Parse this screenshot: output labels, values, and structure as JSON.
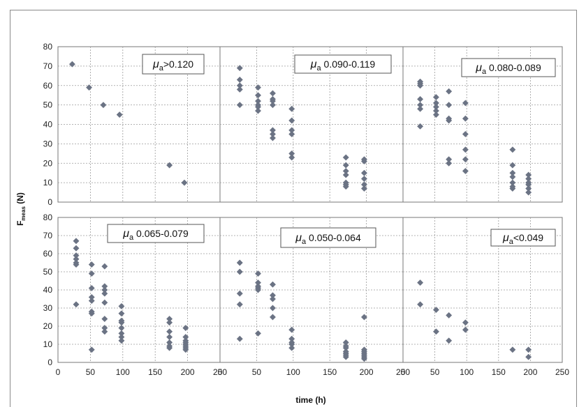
{
  "chart_data": {
    "type": "scatter",
    "xlabel": "time (h)",
    "ylabel_main": "F",
    "ylabel_sub": "meas",
    "ylabel_unit": " (N)",
    "xlim": [
      0,
      250
    ],
    "ylim": [
      0,
      80
    ],
    "x_ticks": [
      0,
      50,
      100,
      150,
      200,
      250
    ],
    "y_ticks": [
      0,
      10,
      20,
      30,
      40,
      50,
      60,
      70,
      80
    ],
    "grid": true,
    "marker_color": "#6b7384",
    "panels": [
      {
        "label_symbol": "μ",
        "label_sub": "a",
        "label_rest": ">0.120",
        "points": [
          [
            22,
            71
          ],
          [
            48,
            59
          ],
          [
            70,
            50
          ],
          [
            95,
            45
          ],
          [
            172,
            19
          ],
          [
            195,
            10
          ]
        ]
      },
      {
        "label_symbol": "μ",
        "label_sub": "a",
        "label_rest": " 0.090-0.119",
        "points": [
          [
            27,
            69
          ],
          [
            27,
            63
          ],
          [
            27,
            60
          ],
          [
            27,
            58
          ],
          [
            27,
            50
          ],
          [
            52,
            59
          ],
          [
            52,
            55
          ],
          [
            52,
            52
          ],
          [
            52,
            50
          ],
          [
            52,
            49
          ],
          [
            52,
            47
          ],
          [
            72,
            56
          ],
          [
            72,
            53
          ],
          [
            72,
            52
          ],
          [
            72,
            50
          ],
          [
            72,
            37
          ],
          [
            72,
            35
          ],
          [
            72,
            33
          ],
          [
            98,
            48
          ],
          [
            98,
            42
          ],
          [
            98,
            37
          ],
          [
            98,
            35
          ],
          [
            98,
            25
          ],
          [
            98,
            23
          ],
          [
            172,
            23
          ],
          [
            172,
            19
          ],
          [
            172,
            16
          ],
          [
            172,
            14
          ],
          [
            172,
            10
          ],
          [
            172,
            9
          ],
          [
            172,
            8
          ],
          [
            197,
            22
          ],
          [
            197,
            21
          ],
          [
            197,
            15
          ],
          [
            197,
            12
          ],
          [
            197,
            9
          ],
          [
            197,
            7
          ]
        ]
      },
      {
        "label_symbol": "μ",
        "label_sub": "a",
        "label_rest": " 0.080-0.089",
        "points": [
          [
            27,
            62
          ],
          [
            27,
            61
          ],
          [
            27,
            60
          ],
          [
            27,
            53
          ],
          [
            27,
            50
          ],
          [
            27,
            48
          ],
          [
            27,
            39
          ],
          [
            52,
            54
          ],
          [
            52,
            51
          ],
          [
            52,
            49
          ],
          [
            52,
            47
          ],
          [
            52,
            45
          ],
          [
            72,
            57
          ],
          [
            72,
            50
          ],
          [
            72,
            43
          ],
          [
            72,
            42
          ],
          [
            72,
            22
          ],
          [
            72,
            20
          ],
          [
            98,
            51
          ],
          [
            98,
            43
          ],
          [
            98,
            35
          ],
          [
            98,
            27
          ],
          [
            98,
            22
          ],
          [
            98,
            16
          ],
          [
            172,
            27
          ],
          [
            172,
            19
          ],
          [
            172,
            15
          ],
          [
            172,
            13
          ],
          [
            172,
            10
          ],
          [
            172,
            8
          ],
          [
            172,
            7
          ],
          [
            197,
            14
          ],
          [
            197,
            12
          ],
          [
            197,
            10
          ],
          [
            197,
            9
          ],
          [
            197,
            7
          ],
          [
            197,
            5
          ]
        ]
      },
      {
        "label_symbol": "μ",
        "label_sub": "a",
        "label_rest": " 0.065-0.079",
        "points": [
          [
            28,
            67
          ],
          [
            28,
            63
          ],
          [
            28,
            59
          ],
          [
            28,
            57
          ],
          [
            28,
            55
          ],
          [
            28,
            54
          ],
          [
            28,
            32
          ],
          [
            52,
            54
          ],
          [
            52,
            49
          ],
          [
            52,
            41
          ],
          [
            52,
            36
          ],
          [
            52,
            34
          ],
          [
            52,
            28
          ],
          [
            52,
            27
          ],
          [
            52,
            7
          ],
          [
            72,
            53
          ],
          [
            72,
            42
          ],
          [
            72,
            40
          ],
          [
            72,
            38
          ],
          [
            72,
            33
          ],
          [
            72,
            24
          ],
          [
            72,
            19
          ],
          [
            72,
            17
          ],
          [
            98,
            31
          ],
          [
            98,
            27
          ],
          [
            98,
            23
          ],
          [
            98,
            22
          ],
          [
            98,
            19
          ],
          [
            98,
            16
          ],
          [
            98,
            14
          ],
          [
            98,
            12
          ],
          [
            172,
            24
          ],
          [
            172,
            22
          ],
          [
            172,
            17
          ],
          [
            172,
            14
          ],
          [
            172,
            11
          ],
          [
            172,
            9
          ],
          [
            172,
            8
          ],
          [
            197,
            19
          ],
          [
            197,
            14
          ],
          [
            197,
            12
          ],
          [
            197,
            11
          ],
          [
            197,
            10
          ],
          [
            197,
            9
          ],
          [
            197,
            8
          ],
          [
            197,
            7
          ]
        ]
      },
      {
        "label_symbol": "μ",
        "label_sub": "a",
        "label_rest": " 0.050-0.064",
        "points": [
          [
            27,
            55
          ],
          [
            27,
            50
          ],
          [
            27,
            38
          ],
          [
            27,
            32
          ],
          [
            27,
            13
          ],
          [
            52,
            49
          ],
          [
            52,
            44
          ],
          [
            52,
            42
          ],
          [
            52,
            41
          ],
          [
            52,
            40
          ],
          [
            52,
            16
          ],
          [
            72,
            43
          ],
          [
            72,
            37
          ],
          [
            72,
            35
          ],
          [
            72,
            30
          ],
          [
            72,
            25
          ],
          [
            98,
            18
          ],
          [
            98,
            13
          ],
          [
            98,
            11
          ],
          [
            98,
            10
          ],
          [
            98,
            8
          ],
          [
            172,
            11
          ],
          [
            172,
            9
          ],
          [
            172,
            8
          ],
          [
            172,
            6
          ],
          [
            172,
            5
          ],
          [
            172,
            4
          ],
          [
            172,
            3
          ],
          [
            197,
            25
          ],
          [
            197,
            7
          ],
          [
            197,
            6
          ],
          [
            197,
            5
          ],
          [
            197,
            4
          ],
          [
            197,
            3
          ],
          [
            197,
            2
          ]
        ]
      },
      {
        "label_symbol": "μ",
        "label_sub": "a",
        "label_rest": "<0.049",
        "points": [
          [
            27,
            44
          ],
          [
            27,
            32
          ],
          [
            52,
            29
          ],
          [
            52,
            17
          ],
          [
            72,
            26
          ],
          [
            72,
            12
          ],
          [
            98,
            22
          ],
          [
            98,
            18
          ],
          [
            172,
            7
          ],
          [
            197,
            7
          ],
          [
            197,
            3
          ]
        ]
      }
    ]
  }
}
